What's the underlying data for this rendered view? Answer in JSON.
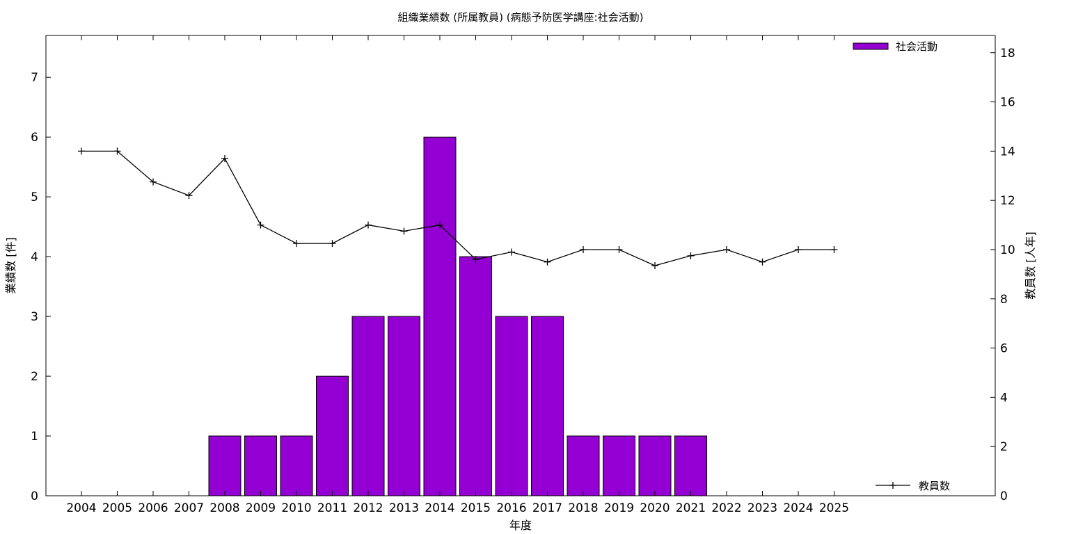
{
  "chart_data": {
    "type": "bar",
    "title": "組織業績数 (所属教員) (病態予防医学講座:社会活動)",
    "xlabel": "年度",
    "ylabel": "業績数 [件]",
    "y2label": "教員数 [人年]",
    "categories": [
      "2004",
      "2005",
      "2006",
      "2007",
      "2008",
      "2009",
      "2010",
      "2011",
      "2012",
      "2013",
      "2014",
      "2015",
      "2016",
      "2017",
      "2018",
      "2019",
      "2020",
      "2021",
      "2022",
      "2023",
      "2024",
      "2025"
    ],
    "ylim": [
      0,
      7.7
    ],
    "y2lim": [
      0,
      18.7
    ],
    "yticks": [
      0,
      1,
      2,
      3,
      4,
      5,
      6,
      7
    ],
    "y2ticks": [
      0,
      2,
      4,
      6,
      8,
      10,
      12,
      14,
      16,
      18
    ],
    "grid": false,
    "series": [
      {
        "name": "社会活動",
        "kind": "bar",
        "axis": "left",
        "color": "#9400d3",
        "values": [
          0,
          0,
          0,
          0,
          1,
          1,
          1,
          2,
          3,
          3,
          6,
          4,
          3,
          3,
          1,
          1,
          1,
          1,
          0,
          0,
          0,
          0
        ]
      },
      {
        "name": "教員数",
        "kind": "line",
        "axis": "right",
        "color": "#000000",
        "values": [
          14.0,
          14.0,
          12.75,
          12.2,
          13.7,
          11.0,
          10.25,
          10.25,
          11.0,
          10.75,
          11.0,
          9.6,
          9.9,
          9.5,
          10.0,
          10.0,
          9.35,
          9.75,
          10.0,
          9.5,
          10.0,
          10.0
        ]
      }
    ],
    "legend": {
      "bar_position": "top-right",
      "line_position": "bottom-right"
    }
  }
}
